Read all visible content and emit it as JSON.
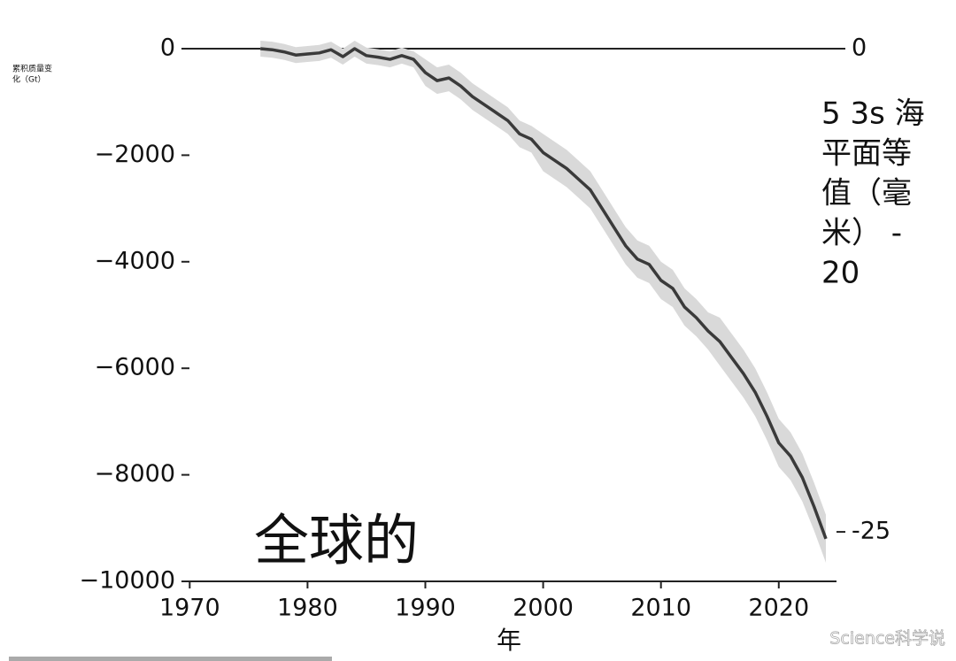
{
  "chart_data": {
    "type": "line",
    "ylabel": [
      "累积质量变",
      "化（Gt）"
    ],
    "y2label": [
      "5 3s 海",
      "平面等",
      "值（毫",
      "米） -",
      "20"
    ],
    "xlabel": "年",
    "annotation": "全球的",
    "watermark": "Science科学说",
    "x": [
      1976,
      1977,
      1978,
      1979,
      1980,
      1981,
      1982,
      1983,
      1984,
      1985,
      1986,
      1987,
      1988,
      1989,
      1990,
      1991,
      1992,
      1993,
      1994,
      1995,
      1996,
      1997,
      1998,
      1999,
      2000,
      2001,
      2002,
      2003,
      2004,
      2005,
      2006,
      2007,
      2008,
      2009,
      2010,
      2011,
      2012,
      2013,
      2014,
      2015,
      2016,
      2017,
      2018,
      2019,
      2020,
      2021,
      2022,
      2023,
      2024
    ],
    "series": [
      {
        "color": "#3a3a3a",
        "values": [
          0,
          -20,
          -60,
          -120,
          -100,
          -80,
          -20,
          -150,
          0,
          -130,
          -160,
          -200,
          -130,
          -200,
          -450,
          -600,
          -550,
          -700,
          -900,
          -1050,
          -1200,
          -1350,
          -1600,
          -1700,
          -1950,
          -2100,
          -2250,
          -2450,
          -2650,
          -3000,
          -3350,
          -3700,
          -3950,
          -4050,
          -4350,
          -4500,
          -4850,
          -5050,
          -5300,
          -5500,
          -5800,
          -6100,
          -6450,
          -6900,
          -7400,
          -7650,
          -8050,
          -8600,
          -9200
        ]
      }
    ],
    "band": {
      "color": "#d9d9d9",
      "upper": [
        150,
        130,
        90,
        30,
        50,
        70,
        130,
        0,
        150,
        20,
        -10,
        -50,
        20,
        -50,
        -200,
        -350,
        -300,
        -450,
        -650,
        -800,
        -950,
        -1100,
        -1350,
        -1450,
        -1600,
        -1750,
        -1900,
        -2100,
        -2300,
        -2650,
        -3000,
        -3350,
        -3600,
        -3700,
        -4000,
        -4150,
        -4500,
        -4700,
        -4950,
        -5050,
        -5350,
        -5650,
        -6000,
        -6450,
        -6950,
        -7200,
        -7600,
        -8150,
        -8750
      ],
      "lower": [
        -150,
        -170,
        -210,
        -270,
        -250,
        -230,
        -170,
        -300,
        -150,
        -280,
        -310,
        -350,
        -280,
        -350,
        -700,
        -850,
        -800,
        -950,
        -1150,
        -1300,
        -1450,
        -1600,
        -1850,
        -1950,
        -2300,
        -2450,
        -2600,
        -2800,
        -3000,
        -3350,
        -3700,
        -4050,
        -4300,
        -4400,
        -4700,
        -4850,
        -5200,
        -5400,
        -5650,
        -5950,
        -6250,
        -6550,
        -6900,
        -7350,
        -7850,
        -8100,
        -8500,
        -9050,
        -9650
      ]
    },
    "xlim": [
      1969.3,
      2024.9
    ],
    "xticks": [
      1970,
      1980,
      1990,
      2000,
      2010,
      2020
    ],
    "ylim": [
      -10000,
      0
    ],
    "yticks": [
      {
        "value": -10000,
        "label": "−10000"
      },
      {
        "value": -8000,
        "label": "−8000"
      },
      {
        "value": -6000,
        "label": "−6000"
      },
      {
        "value": -4000,
        "label": "−4000"
      },
      {
        "value": -2000,
        "label": "−2000"
      },
      0
    ],
    "y2lim": [
      -27.56,
      0
    ],
    "y2ticks": [
      -25,
      0
    ]
  }
}
